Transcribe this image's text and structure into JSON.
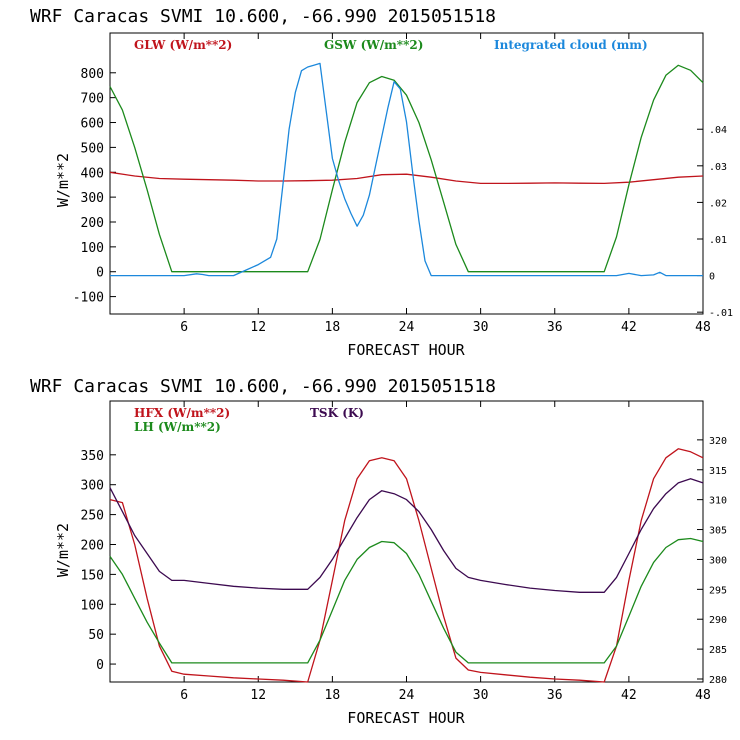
{
  "colors": {
    "red": "#c0141c",
    "green": "#1c8a1c",
    "blue": "#1c88dc",
    "purple": "#3c0a50",
    "axis": "#000000"
  },
  "chart_data": [
    {
      "type": "line",
      "title": "WRF  Caracas SVMI  10.600, -66.990  2015051518",
      "xlabel": "FORECAST HOUR",
      "ylabel": "W/m**2",
      "xlim": [
        0,
        48
      ],
      "ylim": [
        -170,
        960
      ],
      "xticks": [
        6,
        12,
        18,
        24,
        30,
        36,
        42,
        48
      ],
      "yticks": [
        -100,
        0,
        100,
        200,
        300,
        400,
        500,
        600,
        700,
        800
      ],
      "y2lim": [
        -0.0105,
        0.0663
      ],
      "y2ticks": [
        -0.01,
        0,
        0.01,
        0.02,
        0.03,
        0.04
      ],
      "y2ticklabels": [
        "-.01",
        "0",
        ".01",
        ".02",
        ".03",
        ".04"
      ],
      "legend": [
        "GLW (W/m**2)",
        "GSW (W/m**2)",
        "Integrated cloud (mm)"
      ],
      "series": [
        {
          "name": "GLW (W/m**2)",
          "color": "#c0141c",
          "axis": "left",
          "x": [
            0,
            2,
            4,
            6,
            8,
            10,
            12,
            14,
            16,
            18,
            20,
            22,
            24,
            26,
            28,
            30,
            32,
            34,
            36,
            38,
            40,
            42,
            44,
            46,
            48
          ],
          "y": [
            400,
            385,
            375,
            372,
            370,
            368,
            365,
            365,
            366,
            368,
            375,
            390,
            392,
            380,
            365,
            355,
            355,
            356,
            357,
            356,
            355,
            360,
            370,
            380,
            385
          ]
        },
        {
          "name": "GSW (W/m**2)",
          "color": "#1c8a1c",
          "axis": "left",
          "x": [
            0,
            1,
            2,
            3,
            4,
            5,
            6,
            16,
            17,
            18,
            19,
            20,
            21,
            22,
            23,
            24,
            25,
            26,
            27,
            28,
            29,
            30,
            40,
            41,
            42,
            43,
            44,
            45,
            46,
            47,
            48
          ],
          "y": [
            745,
            650,
            500,
            330,
            150,
            0,
            0,
            0,
            130,
            330,
            520,
            680,
            760,
            785,
            770,
            710,
            600,
            450,
            280,
            110,
            0,
            0,
            0,
            140,
            350,
            540,
            690,
            790,
            830,
            810,
            760
          ]
        },
        {
          "name": "Integrated cloud (mm)",
          "color": "#1c88dc",
          "axis": "right",
          "x": [
            0,
            6,
            7,
            7.5,
            8,
            10,
            11,
            12,
            13,
            13.5,
            14,
            14.5,
            15,
            15.5,
            16,
            16.5,
            17,
            17.5,
            18,
            18.5,
            19,
            19.5,
            20,
            20.5,
            21,
            21.5,
            22,
            22.5,
            23,
            23.5,
            24,
            24.5,
            25,
            25.5,
            26,
            27,
            41,
            42,
            43,
            44,
            44.5,
            45,
            46,
            48
          ],
          "y": [
            0,
            0,
            0.0005,
            0.0003,
            0,
            0,
            0.0015,
            0.003,
            0.005,
            0.01,
            0.025,
            0.04,
            0.05,
            0.056,
            0.057,
            0.0575,
            0.058,
            0.045,
            0.032,
            0.026,
            0.021,
            0.017,
            0.0135,
            0.0165,
            0.022,
            0.03,
            0.038,
            0.046,
            0.053,
            0.051,
            0.042,
            0.028,
            0.015,
            0.004,
            0,
            0,
            0,
            0.0006,
            0,
            0.0002,
            0.0009,
            0,
            0,
            0
          ]
        }
      ]
    },
    {
      "type": "line",
      "title": "WRF  Caracas SVMI  10.600, -66.990  2015051518",
      "xlabel": "FORECAST HOUR",
      "ylabel": "W/m**2",
      "xlim": [
        0,
        48
      ],
      "ylim": [
        -30,
        440
      ],
      "xticks": [
        6,
        12,
        18,
        24,
        30,
        36,
        42,
        48
      ],
      "yticks": [
        0,
        50,
        100,
        150,
        200,
        250,
        300,
        350
      ],
      "y2lim": [
        279.5,
        326.5
      ],
      "y2ticks": [
        280,
        285,
        290,
        295,
        300,
        305,
        310,
        315,
        320
      ],
      "y2ticklabels": [
        "280",
        "285",
        "290",
        "295",
        "300",
        "305",
        "310",
        "315",
        "320"
      ],
      "legend": [
        "HFX (W/m**2)",
        "LH  (W/m**2)",
        "TSK (K)"
      ],
      "series": [
        {
          "name": "HFX (W/m**2)",
          "color": "#c0141c",
          "axis": "left",
          "x": [
            0,
            1,
            2,
            3,
            4,
            5,
            6,
            8,
            10,
            12,
            14,
            16,
            17,
            18,
            19,
            20,
            21,
            22,
            23,
            24,
            25,
            26,
            27,
            28,
            29,
            30,
            32,
            34,
            36,
            38,
            40,
            41,
            42,
            43,
            44,
            45,
            46,
            47,
            48
          ],
          "y": [
            275,
            270,
            200,
            110,
            30,
            -12,
            -17,
            -20,
            -23,
            -25,
            -27,
            -30,
            40,
            140,
            240,
            310,
            340,
            345,
            340,
            310,
            240,
            160,
            80,
            10,
            -10,
            -14,
            -18,
            -22,
            -25,
            -27,
            -30,
            30,
            140,
            240,
            310,
            345,
            360,
            355,
            345
          ]
        },
        {
          "name": "LH  (W/m**2)",
          "color": "#1c8a1c",
          "axis": "left",
          "x": [
            0,
            1,
            2,
            3,
            4,
            5,
            6,
            16,
            17,
            18,
            19,
            20,
            21,
            22,
            23,
            24,
            25,
            26,
            27,
            28,
            29,
            30,
            40,
            41,
            42,
            43,
            44,
            45,
            46,
            47,
            48
          ],
          "y": [
            180,
            150,
            110,
            70,
            35,
            2,
            2,
            2,
            40,
            90,
            140,
            175,
            195,
            205,
            203,
            185,
            150,
            105,
            60,
            20,
            2,
            2,
            2,
            30,
            80,
            130,
            170,
            195,
            208,
            210,
            205
          ]
        },
        {
          "name": "TSK (K)",
          "color": "#3c0a50",
          "axis": "right",
          "x": [
            0,
            1,
            2,
            3,
            4,
            5,
            6,
            8,
            10,
            12,
            14,
            16,
            17,
            18,
            19,
            20,
            21,
            22,
            23,
            24,
            25,
            26,
            27,
            28,
            29,
            30,
            32,
            34,
            36,
            38,
            40,
            41,
            42,
            43,
            44,
            45,
            46,
            47,
            48
          ],
          "y": [
            312,
            308,
            304,
            301,
            298,
            296.5,
            296.5,
            296,
            295.5,
            295.2,
            295,
            295,
            297,
            300,
            303.5,
            307,
            310,
            311.5,
            311,
            310,
            308,
            305,
            301.5,
            298.5,
            297,
            296.5,
            295.8,
            295.2,
            294.8,
            294.5,
            294.5,
            297,
            301,
            305,
            308.5,
            311,
            312.8,
            313.5,
            312.8
          ]
        }
      ]
    }
  ]
}
